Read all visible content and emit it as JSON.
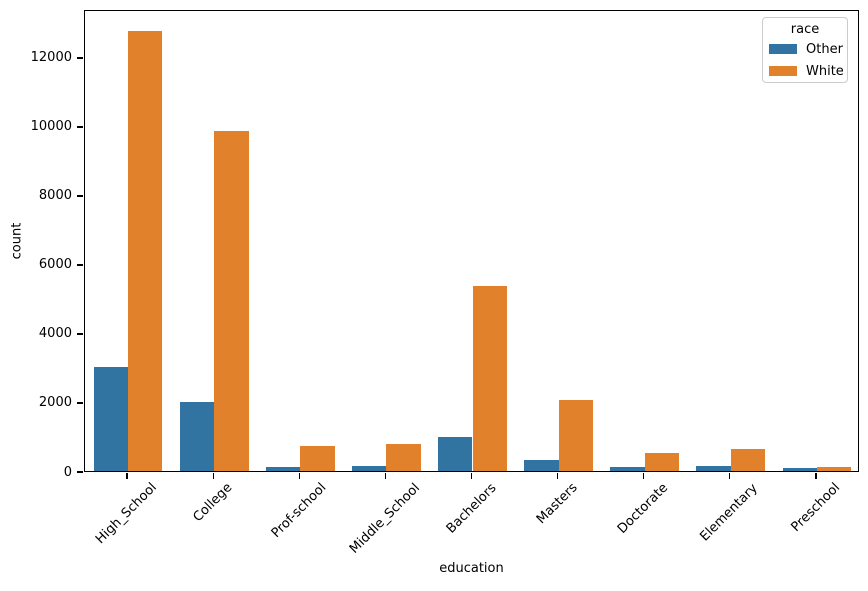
{
  "chart_data": {
    "type": "bar",
    "categories": [
      "High_School",
      "College",
      "Prof-school",
      "Middle_School",
      "Bachelors",
      "Masters",
      "Doctorate",
      "Elementary",
      "Preschool"
    ],
    "series": [
      {
        "name": "Other",
        "color": "#3274a1",
        "values": [
          3030,
          2000,
          105,
          155,
          980,
          310,
          110,
          160,
          85
        ]
      },
      {
        "name": "White",
        "color": "#e1812c",
        "values": [
          12780,
          9870,
          720,
          795,
          5390,
          2050,
          510,
          630,
          115
        ]
      }
    ],
    "title": "",
    "xlabel": "education",
    "ylabel": "count",
    "ylim": [
      0,
      13390
    ],
    "yticks": [
      0,
      2000,
      4000,
      6000,
      8000,
      10000,
      12000
    ],
    "grid": false,
    "legend": {
      "title": "race",
      "position": "upper right"
    }
  },
  "colors": {
    "spine": "#000000",
    "background": "#ffffff",
    "legend_border": "#cccccc"
  }
}
